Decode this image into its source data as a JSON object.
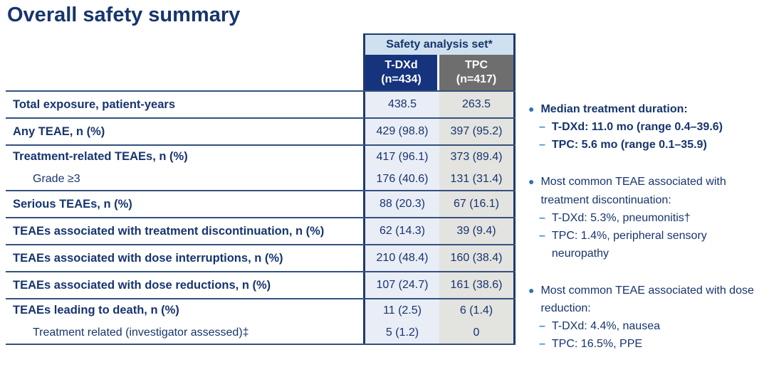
{
  "title": "Overall safety summary",
  "colors": {
    "navy_text": "#17356e",
    "header_navy_bg": "#16337d",
    "header_gray_bg": "#6e6e6e",
    "band_blue_bg": "#cfe1ee",
    "tdxd_column_bg": "#e9edf6",
    "tpc_column_bg": "#e3e3e0",
    "bullet_blue": "#2e74b5",
    "dash_blue": "#3e8ec9"
  },
  "table": {
    "span_header": "Safety analysis set*",
    "columns": [
      {
        "name": "T-DXd",
        "n": "(n=434)"
      },
      {
        "name": "TPC",
        "n": "(n=417)"
      }
    ],
    "groups": [
      {
        "rows": [
          {
            "label": "Total exposure, patient-years",
            "tdxd": "438.5",
            "tpc": "263.5"
          }
        ]
      },
      {
        "rows": [
          {
            "label": "Any TEAE, n (%)",
            "tdxd": "429 (98.8)",
            "tpc": "397 (95.2)"
          }
        ]
      },
      {
        "rows": [
          {
            "label": "Treatment-related TEAEs, n (%)",
            "tdxd": "417 (96.1)",
            "tpc": "373 (89.4)"
          },
          {
            "label": "Grade ≥3",
            "tdxd": "176 (40.6)",
            "tpc": "131 (31.4)"
          }
        ]
      },
      {
        "rows": [
          {
            "label": "Serious TEAEs, n (%)",
            "tdxd": "88 (20.3)",
            "tpc": "67 (16.1)"
          }
        ]
      },
      {
        "rows": [
          {
            "label": "TEAEs associated with treatment discontinuation, n (%)",
            "tdxd": "62 (14.3)",
            "tpc": "39 (9.4)"
          }
        ]
      },
      {
        "rows": [
          {
            "label": "TEAEs associated with dose interruptions, n (%)",
            "tdxd": "210 (48.4)",
            "tpc": "160 (38.4)"
          }
        ]
      },
      {
        "rows": [
          {
            "label": "TEAEs associated with dose reductions, n (%)",
            "tdxd": "107 (24.7)",
            "tpc": "161 (38.6)"
          }
        ]
      },
      {
        "rows": [
          {
            "label": "TEAEs leading to death, n (%)",
            "tdxd": "11 (2.5)",
            "tpc": "6 (1.4)"
          },
          {
            "label": "Treatment related (investigator assessed)‡",
            "tdxd": "5 (1.2)",
            "tpc": "0"
          }
        ]
      }
    ]
  },
  "notes": [
    {
      "title": "Median treatment duration:",
      "items": [
        "T-DXd: 11.0 mo (range 0.4–39.6)",
        "TPC: 5.6 mo (range 0.1–35.9)"
      ]
    },
    {
      "title": "Most common TEAE associated with treatment discontinuation:",
      "items": [
        "T-DXd: 5.3%, pneumonitis†",
        "TPC: 1.4%, peripheral sensory neuropathy"
      ]
    },
    {
      "title": "Most common TEAE associated with dose reduction:",
      "items": [
        "T-DXd: 4.4%, nausea",
        "TPC: 16.5%, PPE"
      ]
    }
  ]
}
